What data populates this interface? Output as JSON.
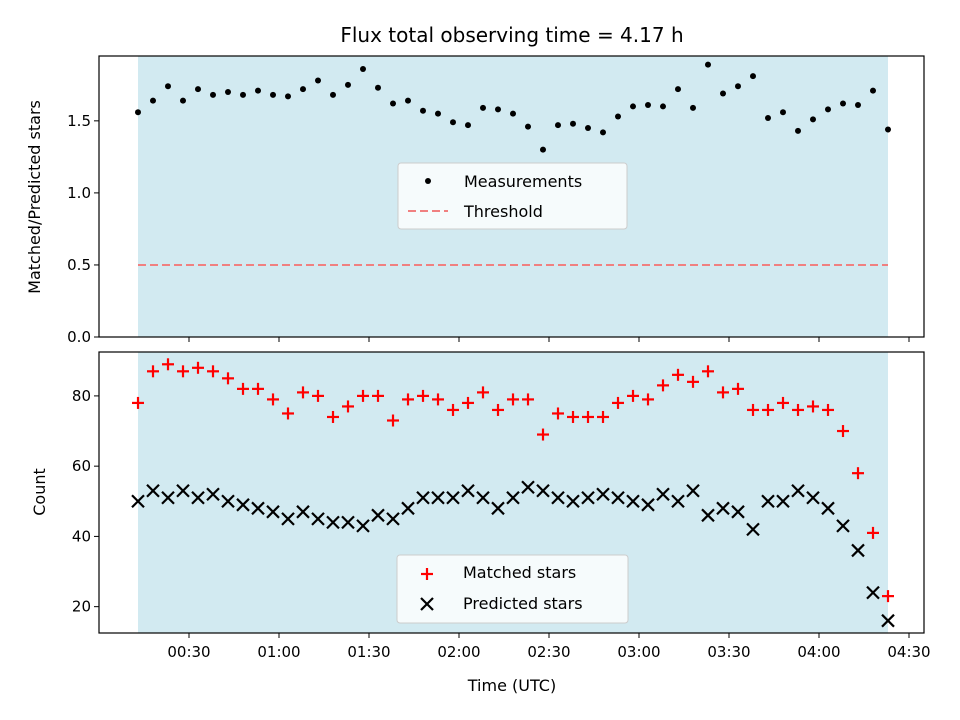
{
  "figure": {
    "title": "Flux total observing time = 4.17 h",
    "xlabel": "Time (UTC)"
  },
  "colors": {
    "band": "#add8e6",
    "threshold": "#f08080",
    "matched": "#ff0000",
    "predicted": "#000000",
    "measurements": "#000000"
  },
  "chart_data": [
    {
      "type": "scatter",
      "ylabel": "Matched/Predicted stars",
      "ylim": [
        0,
        1.95
      ],
      "yticks": [
        0.0,
        0.5,
        1.0,
        1.5
      ],
      "ytick_labels": [
        "0.0",
        "0.5",
        "1.0",
        "1.5"
      ],
      "xlim": [
        "00:00",
        "04:35"
      ],
      "observing_window": [
        "00:13",
        "04:23"
      ],
      "threshold": 0.5,
      "legend": {
        "placement": "center",
        "entries": [
          "Measurements",
          "Threshold"
        ]
      },
      "series": [
        {
          "name": "Measurements",
          "marker": "dot",
          "x": [
            "00:13",
            "00:18",
            "00:23",
            "00:28",
            "00:33",
            "00:38",
            "00:43",
            "00:48",
            "00:53",
            "00:58",
            "01:03",
            "01:08",
            "01:13",
            "01:18",
            "01:23",
            "01:28",
            "01:33",
            "01:38",
            "01:43",
            "01:48",
            "01:53",
            "01:58",
            "02:03",
            "02:08",
            "02:13",
            "02:18",
            "02:23",
            "02:28",
            "02:33",
            "02:38",
            "02:43",
            "02:48",
            "02:53",
            "02:58",
            "03:03",
            "03:08",
            "03:13",
            "03:18",
            "03:23",
            "03:28",
            "03:33",
            "03:38",
            "03:43",
            "03:48",
            "03:53",
            "03:58",
            "04:03",
            "04:08",
            "04:13",
            "04:18",
            "04:23"
          ],
          "values": [
            1.56,
            1.64,
            1.74,
            1.64,
            1.72,
            1.68,
            1.7,
            1.68,
            1.71,
            1.68,
            1.67,
            1.72,
            1.78,
            1.68,
            1.75,
            1.86,
            1.73,
            1.62,
            1.64,
            1.57,
            1.55,
            1.49,
            1.47,
            1.59,
            1.58,
            1.55,
            1.46,
            1.3,
            1.47,
            1.48,
            1.45,
            1.42,
            1.53,
            1.6,
            1.61,
            1.6,
            1.72,
            1.59,
            1.89,
            1.69,
            1.74,
            1.81,
            1.52,
            1.56,
            1.43,
            1.51,
            1.58,
            1.62,
            1.61,
            1.71,
            1.44
          ]
        },
        {
          "name": "Threshold",
          "style": "dashed",
          "y": 0.5
        }
      ]
    },
    {
      "type": "scatter",
      "ylabel": "Count",
      "ylim": [
        12.5,
        92.5
      ],
      "yticks": [
        20,
        40,
        60,
        80
      ],
      "ytick_labels": [
        "20",
        "40",
        "60",
        "80"
      ],
      "xlim": [
        "00:00",
        "04:35"
      ],
      "xticks": [
        "00:30",
        "01:00",
        "01:30",
        "02:00",
        "02:30",
        "03:00",
        "03:30",
        "04:00",
        "04:30"
      ],
      "observing_window": [
        "00:13",
        "04:23"
      ],
      "legend": {
        "placement": "lower center",
        "entries": [
          "Matched stars",
          "Predicted stars"
        ]
      },
      "series": [
        {
          "name": "Matched stars",
          "marker": "plus",
          "x": [
            "00:13",
            "00:18",
            "00:23",
            "00:28",
            "00:33",
            "00:38",
            "00:43",
            "00:48",
            "00:53",
            "00:58",
            "01:03",
            "01:08",
            "01:13",
            "01:18",
            "01:23",
            "01:28",
            "01:33",
            "01:38",
            "01:43",
            "01:48",
            "01:53",
            "01:58",
            "02:03",
            "02:08",
            "02:13",
            "02:18",
            "02:23",
            "02:28",
            "02:33",
            "02:38",
            "02:43",
            "02:48",
            "02:53",
            "02:58",
            "03:03",
            "03:08",
            "03:13",
            "03:18",
            "03:23",
            "03:28",
            "03:33",
            "03:38",
            "03:43",
            "03:48",
            "03:53",
            "03:58",
            "04:03",
            "04:08",
            "04:13",
            "04:18",
            "04:23"
          ],
          "values": [
            78,
            87,
            89,
            87,
            88,
            87,
            85,
            82,
            82,
            79,
            75,
            81,
            80,
            74,
            77,
            80,
            80,
            73,
            79,
            80,
            79,
            76,
            78,
            81,
            76,
            79,
            79,
            69,
            75,
            74,
            74,
            74,
            78,
            80,
            79,
            83,
            86,
            84,
            87,
            81,
            82,
            76,
            76,
            78,
            76,
            77,
            76,
            70,
            58,
            41,
            23
          ]
        },
        {
          "name": "Predicted stars",
          "marker": "x",
          "x": [
            "00:13",
            "00:18",
            "00:23",
            "00:28",
            "00:33",
            "00:38",
            "00:43",
            "00:48",
            "00:53",
            "00:58",
            "01:03",
            "01:08",
            "01:13",
            "01:18",
            "01:23",
            "01:28",
            "01:33",
            "01:38",
            "01:43",
            "01:48",
            "01:53",
            "01:58",
            "02:03",
            "02:08",
            "02:13",
            "02:18",
            "02:23",
            "02:28",
            "02:33",
            "02:38",
            "02:43",
            "02:48",
            "02:53",
            "02:58",
            "03:03",
            "03:08",
            "03:13",
            "03:18",
            "03:23",
            "03:28",
            "03:33",
            "03:38",
            "03:43",
            "03:48",
            "03:53",
            "03:58",
            "04:03",
            "04:08",
            "04:13",
            "04:18",
            "04:23"
          ],
          "values": [
            50,
            53,
            51,
            53,
            51,
            52,
            50,
            49,
            48,
            47,
            45,
            47,
            45,
            44,
            44,
            43,
            46,
            45,
            48,
            51,
            51,
            51,
            53,
            51,
            48,
            51,
            54,
            53,
            51,
            50,
            51,
            52,
            51,
            50,
            49,
            52,
            50,
            53,
            46,
            48,
            47,
            42,
            50,
            50,
            53,
            51,
            48,
            43,
            36,
            24,
            16
          ]
        }
      ]
    }
  ]
}
